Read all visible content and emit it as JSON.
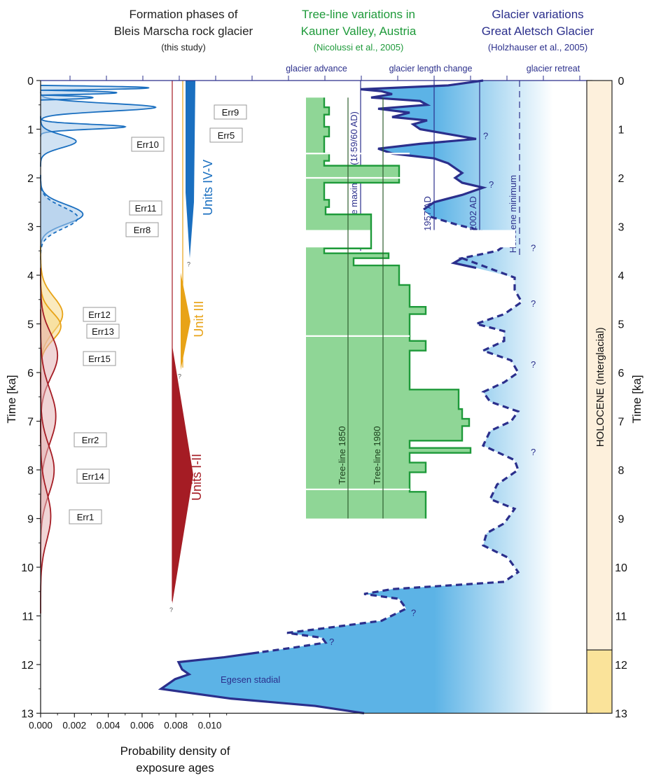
{
  "headers": {
    "formation": {
      "line1": "Formation phases of",
      "line2": "Bleis Marscha rock glacier",
      "line3": "(this study)"
    },
    "treeline": {
      "line1": "Tree-line variations in",
      "line2": "Kauner Valley, Austria",
      "line3": "(Nicolussi et al., 2005)"
    },
    "glacier": {
      "line1": "Glacier variations",
      "line2": "Great Aletsch Glacier",
      "line3": "(Holzhauser et al., 2005)"
    }
  },
  "glacier_axis": {
    "advance": "glacier advance",
    "length_change": "glacier length change",
    "retreat": "glacier retreat"
  },
  "colors": {
    "blue": "#1a6fc0",
    "blue_fill": "#a9cbea",
    "orange": "#e8a317",
    "orange_fill": "#f6d98a",
    "red": "#a51c24",
    "red_fill": "#e3b2b4",
    "green": "#1e9a3a",
    "green_fill": "#8fd696",
    "navy": "#2b2f8c",
    "glacier_fill": "#5cb3e6",
    "holocene_top": "#fdf0dc",
    "holocene_bottom": "#fae39a"
  },
  "chart_data": {
    "type": "area",
    "xlabel": "Probability density of exposure ages",
    "ylabel": "Time [ka]",
    "xlim": [
      0,
      0.0116
    ],
    "ylim": [
      0,
      13
    ],
    "x_ticks": [
      "0.000",
      "0.002",
      "0.004",
      "0.006",
      "0.008",
      "0.010"
    ],
    "y_ticks": [
      "0",
      "1",
      "2",
      "3",
      "4",
      "5",
      "6",
      "7",
      "8",
      "9",
      "10",
      "11",
      "12",
      "13"
    ],
    "series": [
      {
        "name": "Err9",
        "group": "Units IV-V",
        "mean_ka": 0.55,
        "sd_ka": 0.08,
        "peak": 0.0068
      },
      {
        "name": "Err5",
        "group": "Units IV-V",
        "mean_ka": 0.95,
        "sd_ka": 0.05,
        "peak": 0.005
      },
      {
        "name": "Err10",
        "group": "Units IV-V",
        "mean_ka": 1.25,
        "sd_ka": 0.13,
        "peak": 0.0021
      },
      {
        "name": "Err11",
        "group": "Units IV-V",
        "mean_ka": 2.75,
        "sd_ka": 0.2,
        "peak": 0.0025
      },
      {
        "name": "Err8",
        "group": "Units IV-V",
        "mean_ka": 2.82,
        "sd_ka": 0.22,
        "peak": 0.0022
      },
      {
        "name": "Err12",
        "group": "Unit III",
        "mean_ka": 4.8,
        "sd_ka": 0.35,
        "peak": 0.0013
      },
      {
        "name": "Err13",
        "group": "Unit III",
        "mean_ka": 5.05,
        "sd_ka": 0.28,
        "peak": 0.0012
      },
      {
        "name": "Err15",
        "group": "Units I-II",
        "mean_ka": 5.65,
        "sd_ka": 0.45,
        "peak": 0.001
      },
      {
        "name": "Err2",
        "group": "Units I-II",
        "mean_ka": 6.9,
        "sd_ka": 0.55,
        "peak": 0.0009
      },
      {
        "name": "Err14",
        "group": "Units I-II",
        "mean_ka": 8.0,
        "sd_ka": 0.5,
        "peak": 0.0008
      },
      {
        "name": "Err1",
        "group": "Units I-II",
        "mean_ka": 8.95,
        "sd_ka": 0.5,
        "peak": 0.0006
      }
    ],
    "formation_units": [
      {
        "label": "Units IV-V",
        "from_ka": 0.0,
        "to_ka": 3.65,
        "x": 0.0044
      },
      {
        "label": "Unit III",
        "from_ka": 3.95,
        "to_ka": 5.95,
        "x": 0.0041
      },
      {
        "label": "Units I-II",
        "from_ka": 5.45,
        "to_ka": 10.75,
        "x": 0.0039
      }
    ],
    "treeline": {
      "reference_lines": [
        {
          "label": "Tree-line 1850",
          "x": 0.009
        },
        {
          "label": "Tree-line 1980",
          "x": 0.0101
        }
      ],
      "left_x": 0.0078
    },
    "glacier": {
      "reference_lines": [
        {
          "label": "Holocene maximum (1859/60 AD)",
          "x": 0.0095
        },
        {
          "label": "1957 AD",
          "x": 0.0116
        },
        {
          "label": "2002 AD",
          "x": 0.013
        },
        {
          "label": "Holocene minimum",
          "x": 0.0141
        }
      ],
      "annotation": "Egesen stadial",
      "question": "?"
    },
    "epoch_bar": {
      "label": "HOLOCENE (Interglacial)",
      "holocene_end_ka": 11.7
    }
  }
}
